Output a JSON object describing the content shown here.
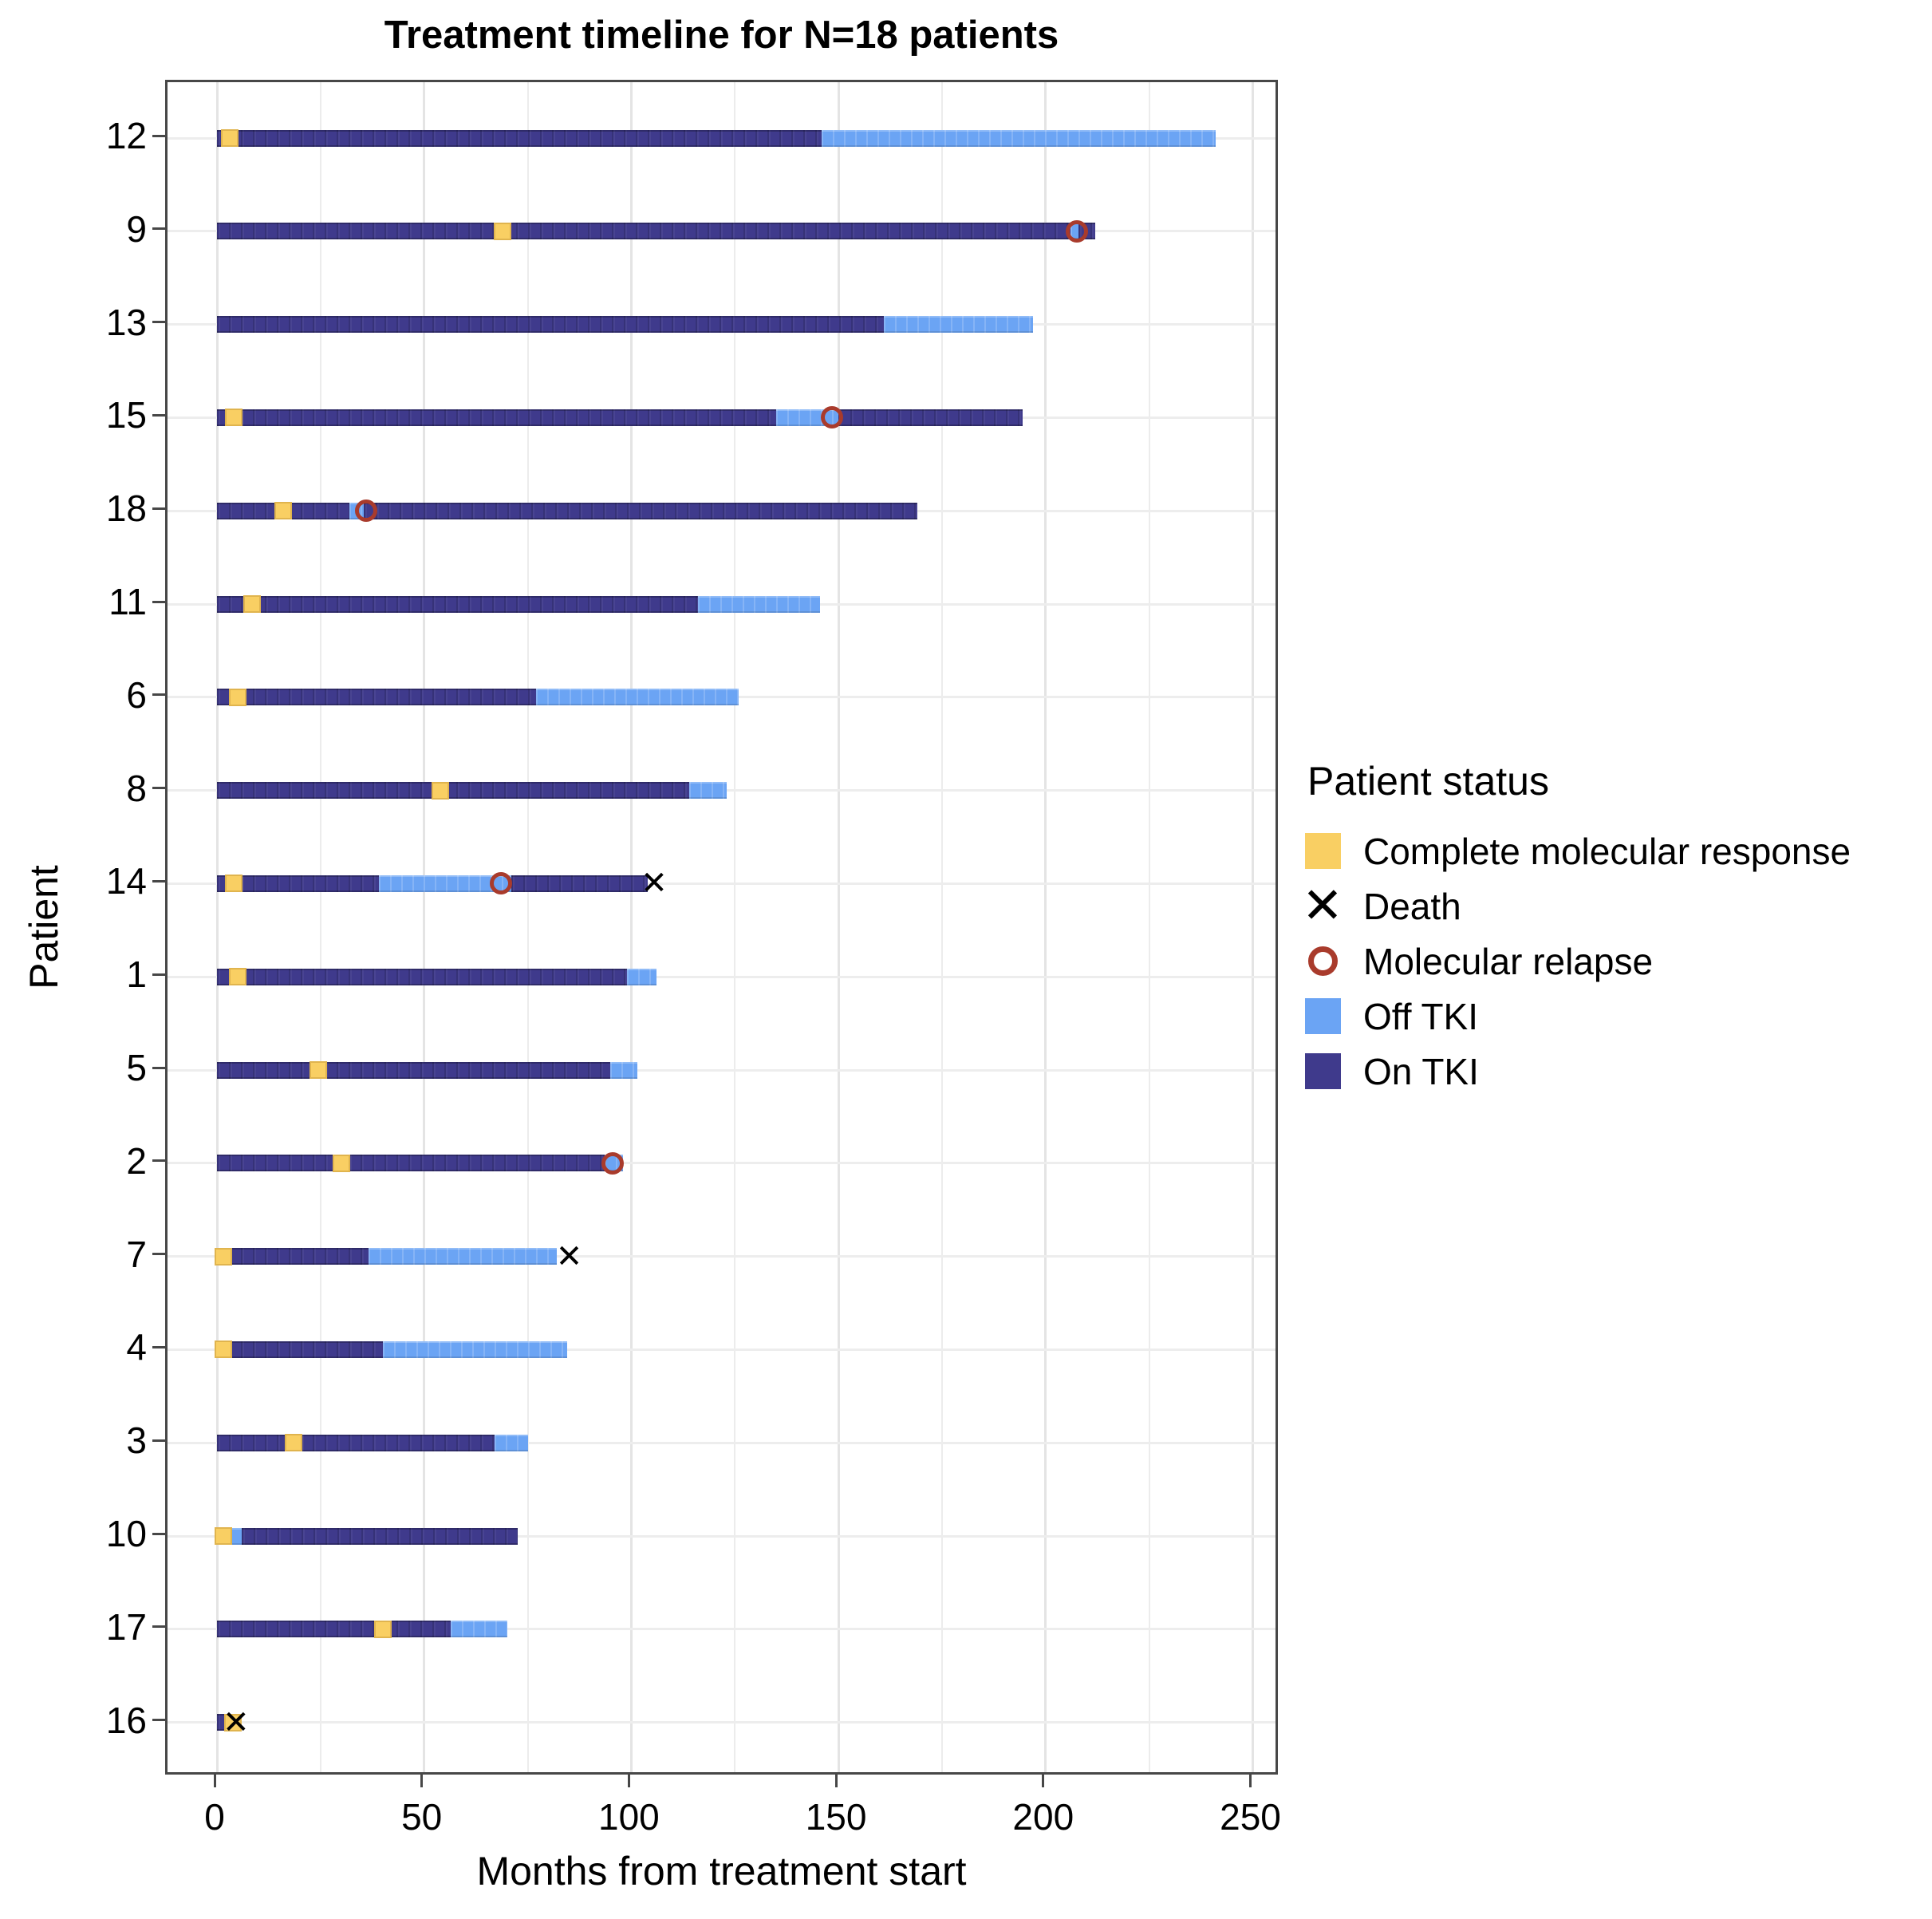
{
  "title": "Treatment timeline for N=18 patients",
  "x_axis": {
    "label": "Months from treatment start",
    "ticks": [
      0,
      50,
      100,
      150,
      200,
      250
    ],
    "minor_ticks": [
      25,
      75,
      125,
      175,
      225
    ],
    "range": [
      0,
      250
    ]
  },
  "y_axis": {
    "label": "Patient"
  },
  "legend": {
    "title": "Patient status",
    "items": [
      {
        "label": "Complete molecular response",
        "shape": "square",
        "color_key": "cmr"
      },
      {
        "label": "Death",
        "shape": "x",
        "color_key": "death"
      },
      {
        "label": "Molecular relapse",
        "shape": "circle",
        "color_key": "relapse"
      },
      {
        "label": "Off TKI",
        "shape": "square",
        "color_key": "off_tki"
      },
      {
        "label": "On TKI",
        "shape": "square",
        "color_key": "on_tki"
      }
    ]
  },
  "colors": {
    "on_tki": "#3F3A8C",
    "off_tki": "#6BA4F4",
    "cmr": "#F9CF63",
    "cmr_border": "#E0B44E",
    "relapse": "#A93B2C",
    "death": "#000000",
    "grid": "#E4E4E4",
    "panel_border": "#474747"
  },
  "chart_data": {
    "type": "timeline_swimmer",
    "title": "Treatment timeline for N=18 patients",
    "xlabel": "Months from treatment start",
    "ylabel": "Patient",
    "xlim": [
      0,
      250
    ],
    "status_values": [
      "On TKI",
      "Off TKI"
    ],
    "patients": [
      {
        "id": "12",
        "segments": [
          {
            "status": "On TKI",
            "start": 0,
            "end": 146
          },
          {
            "status": "Off TKI",
            "start": 146,
            "end": 241
          }
        ],
        "markers": {
          "cmr": 3
        }
      },
      {
        "id": "9",
        "segments": [
          {
            "status": "On TKI",
            "start": 0,
            "end": 206
          },
          {
            "status": "Off TKI",
            "start": 206,
            "end": 208
          },
          {
            "status": "On TKI",
            "start": 208,
            "end": 212
          }
        ],
        "markers": {
          "cmr": 69,
          "relapse": 207.5
        }
      },
      {
        "id": "13",
        "segments": [
          {
            "status": "On TKI",
            "start": 0,
            "end": 161
          },
          {
            "status": "Off TKI",
            "start": 161,
            "end": 197
          }
        ],
        "markers": {}
      },
      {
        "id": "15",
        "segments": [
          {
            "status": "On TKI",
            "start": 0,
            "end": 135
          },
          {
            "status": "Off TKI",
            "start": 135,
            "end": 150
          },
          {
            "status": "On TKI",
            "start": 150,
            "end": 194.5
          }
        ],
        "markers": {
          "cmr": 4,
          "relapse": 148.5
        }
      },
      {
        "id": "18",
        "segments": [
          {
            "status": "On TKI",
            "start": 0,
            "end": 32
          },
          {
            "status": "Off TKI",
            "start": 32,
            "end": 35.5
          },
          {
            "status": "On TKI",
            "start": 35.5,
            "end": 169
          }
        ],
        "markers": {
          "cmr": 16,
          "relapse": 36
        }
      },
      {
        "id": "11",
        "segments": [
          {
            "status": "On TKI",
            "start": 0,
            "end": 116
          },
          {
            "status": "Off TKI",
            "start": 116,
            "end": 145.5
          }
        ],
        "markers": {
          "cmr": 8.5
        }
      },
      {
        "id": "6",
        "segments": [
          {
            "status": "On TKI",
            "start": 0,
            "end": 77
          },
          {
            "status": "Off TKI",
            "start": 77,
            "end": 126
          }
        ],
        "markers": {
          "cmr": 5
        }
      },
      {
        "id": "8",
        "segments": [
          {
            "status": "On TKI",
            "start": 0,
            "end": 114
          },
          {
            "status": "Off TKI",
            "start": 114,
            "end": 123
          }
        ],
        "markers": {
          "cmr": 54
        }
      },
      {
        "id": "14",
        "segments": [
          {
            "status": "On TKI",
            "start": 0,
            "end": 39
          },
          {
            "status": "Off TKI",
            "start": 39,
            "end": 71
          },
          {
            "status": "On TKI",
            "start": 71,
            "end": 104
          }
        ],
        "markers": {
          "cmr": 4,
          "relapse": 68.5,
          "death": 105.5
        }
      },
      {
        "id": "1",
        "segments": [
          {
            "status": "On TKI",
            "start": 0,
            "end": 99
          },
          {
            "status": "Off TKI",
            "start": 99,
            "end": 106
          }
        ],
        "markers": {
          "cmr": 5
        }
      },
      {
        "id": "5",
        "segments": [
          {
            "status": "On TKI",
            "start": 0,
            "end": 95
          },
          {
            "status": "Off TKI",
            "start": 95,
            "end": 101.5
          }
        ],
        "markers": {
          "cmr": 24.5
        }
      },
      {
        "id": "2",
        "segments": [
          {
            "status": "On TKI",
            "start": 0,
            "end": 93.5
          },
          {
            "status": "Off TKI",
            "start": 93.5,
            "end": 98
          }
        ],
        "markers": {
          "cmr": 30,
          "relapse": 95.5
        }
      },
      {
        "id": "7",
        "segments": [
          {
            "status": "On TKI",
            "start": 0,
            "end": 36.5
          },
          {
            "status": "Off TKI",
            "start": 36.5,
            "end": 82
          }
        ],
        "markers": {
          "cmr": 1.5,
          "death": 85
        }
      },
      {
        "id": "4",
        "segments": [
          {
            "status": "On TKI",
            "start": 0,
            "end": 40
          },
          {
            "status": "Off TKI",
            "start": 40,
            "end": 84.5
          }
        ],
        "markers": {
          "cmr": 1.5
        }
      },
      {
        "id": "3",
        "segments": [
          {
            "status": "On TKI",
            "start": 0,
            "end": 67
          },
          {
            "status": "Off TKI",
            "start": 67,
            "end": 75
          }
        ],
        "markers": {
          "cmr": 18.5
        }
      },
      {
        "id": "10",
        "segments": [
          {
            "status": "On TKI",
            "start": 0,
            "end": 3.3
          },
          {
            "status": "Off TKI",
            "start": 3.3,
            "end": 6
          },
          {
            "status": "On TKI",
            "start": 6,
            "end": 72.5
          }
        ],
        "markers": {
          "cmr": 1.5
        }
      },
      {
        "id": "17",
        "segments": [
          {
            "status": "On TKI",
            "start": 0,
            "end": 56.5
          },
          {
            "status": "Off TKI",
            "start": 56.5,
            "end": 70
          }
        ],
        "markers": {
          "cmr": 40
        }
      },
      {
        "id": "16",
        "segments": [
          {
            "status": "On TKI",
            "start": 0,
            "end": 3
          }
        ],
        "markers": {
          "cmr": 3.8,
          "death": 4.6
        }
      }
    ]
  }
}
